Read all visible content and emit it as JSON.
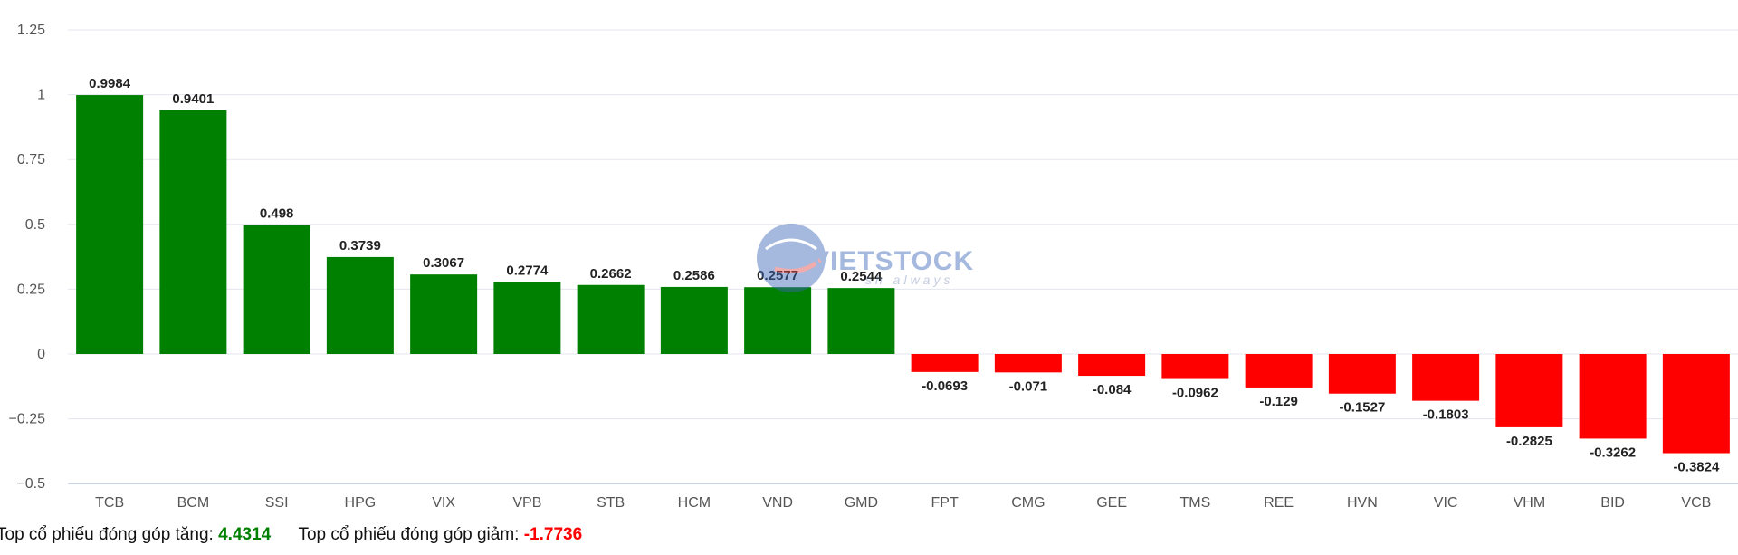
{
  "chart_data": {
    "type": "bar",
    "categories": [
      "TCB",
      "BCM",
      "SSI",
      "HPG",
      "VIX",
      "VPB",
      "STB",
      "HCM",
      "VND",
      "GMD",
      "FPT",
      "CMG",
      "GEE",
      "TMS",
      "REE",
      "HVN",
      "VIC",
      "VHM",
      "BID",
      "VCB"
    ],
    "values": [
      0.9984,
      0.9401,
      0.498,
      0.3739,
      0.3067,
      0.2774,
      0.2662,
      0.2586,
      0.2577,
      0.2544,
      -0.0693,
      -0.071,
      -0.084,
      -0.0962,
      -0.129,
      -0.1527,
      -0.1803,
      -0.2825,
      -0.3262,
      -0.3824
    ],
    "ylim": [
      -0.5,
      1.25
    ],
    "yticks": [
      1.25,
      1,
      0.75,
      0.5,
      0.25,
      0,
      -0.25,
      -0.5
    ],
    "ytick_labels": [
      "1.25",
      "1",
      "0.75",
      "0.5",
      "0.25",
      "0",
      "−0.25",
      "−0.5"
    ],
    "grid": true,
    "colors": {
      "positive": "#008000",
      "negative": "#ff0000"
    }
  },
  "footer": {
    "up_label": "Top cổ phiếu đóng góp tăng:",
    "up_value": "4.4314",
    "up_color": "#008000",
    "down_label": "Top cổ phiếu đóng góp giảm:",
    "down_value": "-1.7736",
    "down_color": "#ff0000"
  },
  "watermark": {
    "brand": "VIETSTOCK",
    "tagline": "sh always"
  }
}
